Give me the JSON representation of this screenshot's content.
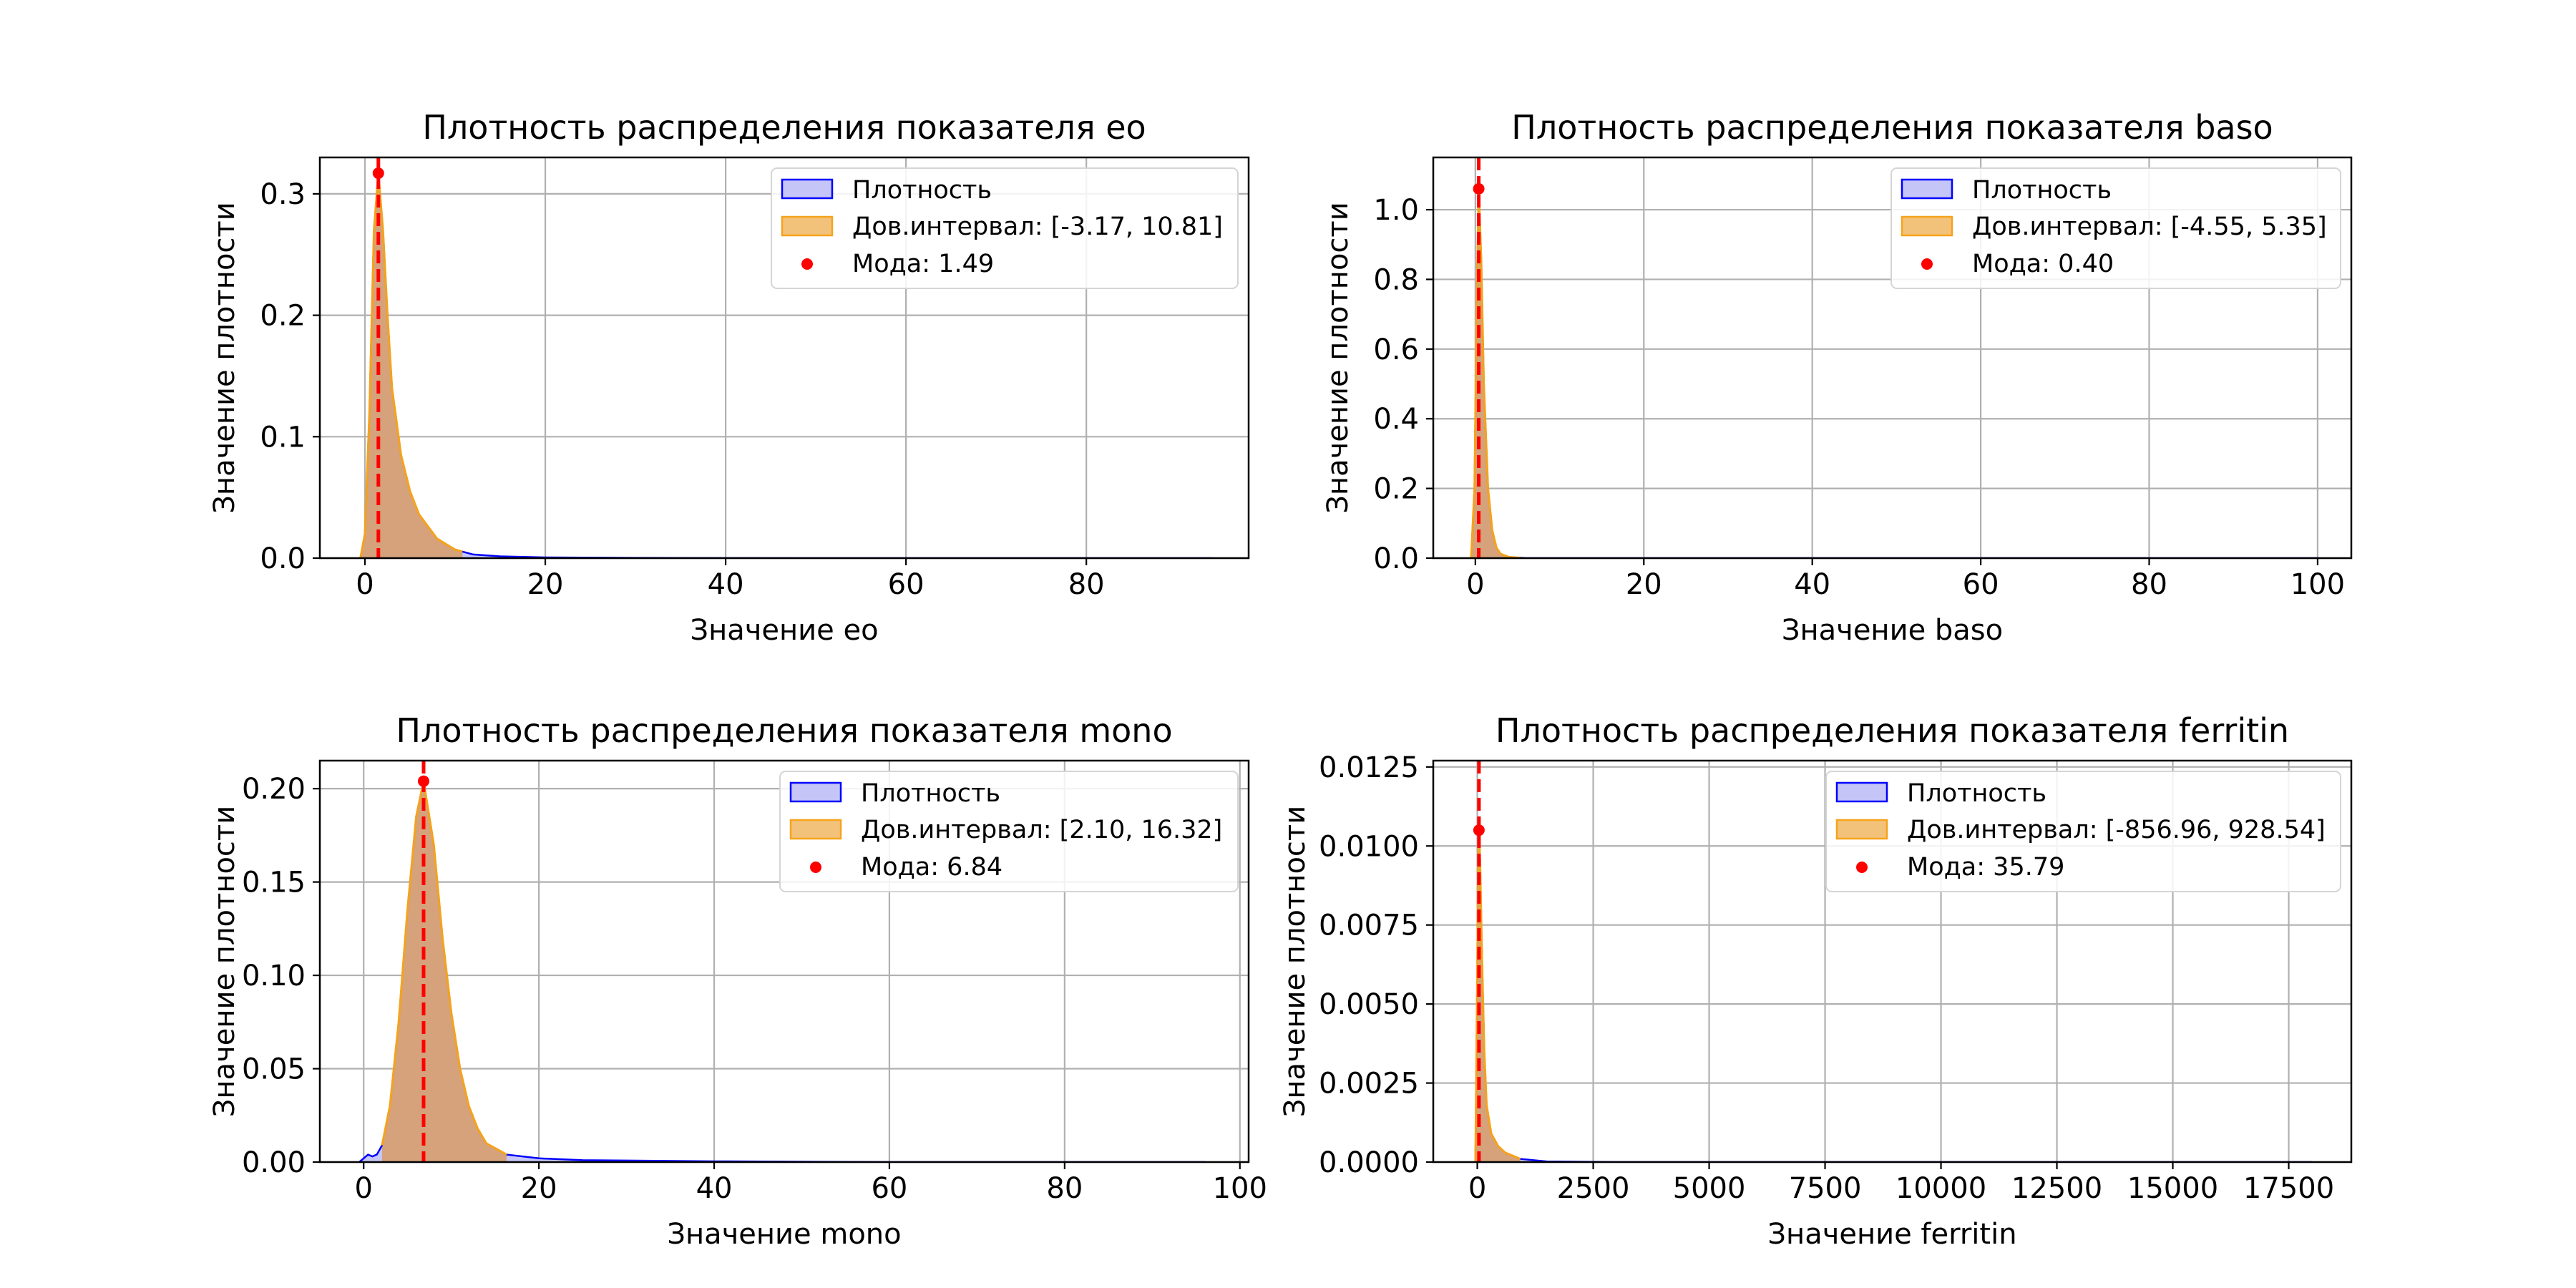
{
  "colors": {
    "density_fill": "#c5c5f8",
    "density_line": "#0000ff",
    "ci_fill": "#f3c27a",
    "ci_line": "#f5a31c",
    "overlap_fill": "#d5a27c",
    "mode_color": "#ff0000",
    "grid": "#b0b0b0"
  },
  "chart_data": [
    {
      "type": "area",
      "title": "Плотность распределения показателя eo",
      "xlabel": "Значение eo",
      "ylabel": "Значение плотности",
      "xlim": [
        -5,
        98
      ],
      "ylim": [
        0,
        0.33
      ],
      "xticks": [
        0,
        20,
        40,
        60,
        80
      ],
      "xtick_labels": [
        "0",
        "20",
        "40",
        "60",
        "80"
      ],
      "yticks": [
        0.0,
        0.1,
        0.2,
        0.3
      ],
      "ytick_labels": [
        "0.0",
        "0.1",
        "0.2",
        "0.3"
      ],
      "grid": true,
      "legend_position": "upper right",
      "legend": {
        "density_label": "Плотность",
        "ci_label": "Дов.интервал: [-3.17, 10.81]",
        "mode_label": "Мода: 1.49"
      },
      "ci": [
        -3.17,
        10.81
      ],
      "mode": 1.49,
      "mode_density": 0.317,
      "density": {
        "x": [
          -0.5,
          0,
          0.5,
          1.0,
          1.49,
          2.0,
          2.5,
          3.0,
          4.0,
          5.0,
          6.0,
          8.0,
          10.0,
          12.0,
          15.0,
          20.0,
          30.0,
          50.0,
          70.0,
          94.0
        ],
        "y": [
          0.0,
          0.02,
          0.12,
          0.27,
          0.317,
          0.27,
          0.2,
          0.14,
          0.085,
          0.055,
          0.036,
          0.016,
          0.007,
          0.003,
          0.0015,
          0.0006,
          0.0002,
          0.0,
          0.0,
          0.0
        ]
      }
    },
    {
      "type": "area",
      "title": "Плотность распределения показателя baso",
      "xlabel": "Значение baso",
      "ylabel": "Значение плотности",
      "xlim": [
        -5,
        104
      ],
      "ylim": [
        0,
        1.15
      ],
      "xticks": [
        0,
        20,
        40,
        60,
        80,
        100
      ],
      "xtick_labels": [
        "0",
        "20",
        "40",
        "60",
        "80",
        "100"
      ],
      "yticks": [
        0.0,
        0.2,
        0.4,
        0.6,
        0.8,
        1.0
      ],
      "ytick_labels": [
        "0.0",
        "0.2",
        "0.4",
        "0.6",
        "0.8",
        "1.0"
      ],
      "grid": true,
      "legend_position": "upper right",
      "legend": {
        "density_label": "Плотность",
        "ci_label": "Дов.интервал: [-4.55, 5.35]",
        "mode_label": "Мода: 0.40"
      },
      "ci": [
        -4.55,
        5.35
      ],
      "mode": 0.4,
      "mode_density": 1.06,
      "density": {
        "x": [
          -0.5,
          -0.1,
          0.2,
          0.4,
          0.7,
          1.0,
          1.5,
          2.0,
          2.5,
          3.0,
          4.0,
          6.0,
          10.0,
          50.0,
          100.0
        ],
        "y": [
          0.0,
          0.2,
          0.8,
          1.06,
          0.85,
          0.5,
          0.2,
          0.08,
          0.03,
          0.012,
          0.003,
          0.0,
          0.0,
          0.0,
          0.0
        ]
      }
    },
    {
      "type": "area",
      "title": "Плотность распределения показателя mono",
      "xlabel": "Значение mono",
      "ylabel": "Значение плотности",
      "xlim": [
        -5,
        101
      ],
      "ylim": [
        0,
        0.215
      ],
      "xticks": [
        0,
        20,
        40,
        60,
        80,
        100
      ],
      "xtick_labels": [
        "0",
        "20",
        "40",
        "60",
        "80",
        "100"
      ],
      "yticks": [
        0.0,
        0.05,
        0.1,
        0.15,
        0.2
      ],
      "ytick_labels": [
        "0.00",
        "0.05",
        "0.10",
        "0.15",
        "0.20"
      ],
      "grid": true,
      "legend_position": "upper right",
      "legend": {
        "density_label": "Плотность",
        "ci_label": "Дов.интервал: [2.10, 16.32]",
        "mode_label": "Мода: 6.84"
      },
      "ci": [
        2.1,
        16.32
      ],
      "mode": 6.84,
      "mode_density": 0.204,
      "density": {
        "x": [
          -0.5,
          0.0,
          0.5,
          1.0,
          1.5,
          2.1,
          3.0,
          4.0,
          5.0,
          6.0,
          6.84,
          8.0,
          9.0,
          10.0,
          11.0,
          12.0,
          13.0,
          14.0,
          16.32,
          20.0,
          25.0,
          40.0,
          60.0,
          96.0
        ],
        "y": [
          0.0,
          0.002,
          0.004,
          0.003,
          0.004,
          0.009,
          0.03,
          0.075,
          0.135,
          0.185,
          0.204,
          0.17,
          0.12,
          0.08,
          0.05,
          0.03,
          0.018,
          0.01,
          0.004,
          0.002,
          0.001,
          0.0004,
          0.0,
          0.0
        ]
      }
    },
    {
      "type": "area",
      "title": "Плотность распределения показателя ferritin",
      "xlabel": "Значение ferritin",
      "ylabel": "Значение плотности",
      "xlim": [
        -950,
        18850
      ],
      "ylim": [
        0,
        0.0127
      ],
      "xticks": [
        0,
        2500,
        5000,
        7500,
        10000,
        12500,
        15000,
        17500
      ],
      "xtick_labels": [
        "0",
        "2500",
        "5000",
        "7500",
        "10000",
        "12500",
        "15000",
        "17500"
      ],
      "yticks": [
        0.0,
        0.0025,
        0.005,
        0.0075,
        0.01,
        0.0125
      ],
      "ytick_labels": [
        "0.0000",
        "0.0025",
        "0.0050",
        "0.0075",
        "0.0100",
        "0.0125"
      ],
      "grid": true,
      "legend_position": "upper right",
      "legend": {
        "density_label": "Плотность",
        "ci_label": "Дов.интервал: [-856.96, 928.54]",
        "mode_label": "Мода: 35.79"
      },
      "ci": [
        -856.96,
        928.54
      ],
      "mode": 35.79,
      "mode_density": 0.0105,
      "density": {
        "x": [
          -40,
          0,
          20,
          35.79,
          60,
          100,
          150,
          200,
          300,
          450,
          600,
          928.54,
          1500,
          3000,
          10000,
          18000
        ],
        "y": [
          0.0,
          0.006,
          0.0095,
          0.0105,
          0.0095,
          0.0065,
          0.0035,
          0.0018,
          0.0009,
          0.0005,
          0.0003,
          0.0001,
          2e-05,
          0.0,
          0.0,
          0.0
        ]
      }
    }
  ]
}
